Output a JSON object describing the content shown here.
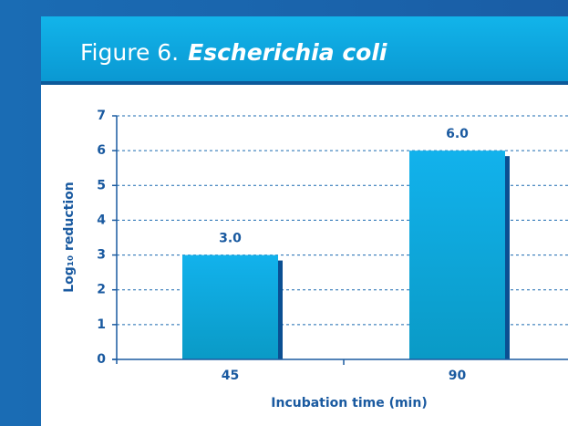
{
  "chart_data": {
    "type": "bar",
    "title": "Figure 6.",
    "organism": "Escherichia coli",
    "x_label": "Incubation time (min)",
    "y_label": "Log₁₀ reduction",
    "categories": [
      "45",
      "90"
    ],
    "values": [
      3,
      6
    ],
    "value_labels": [
      "3.0",
      "6.0"
    ],
    "color": "#0fa6dc",
    "ylim": [
      0,
      7
    ],
    "yticks": [
      0,
      1,
      2,
      3,
      4,
      5,
      6,
      7
    ],
    "grid": true
  }
}
